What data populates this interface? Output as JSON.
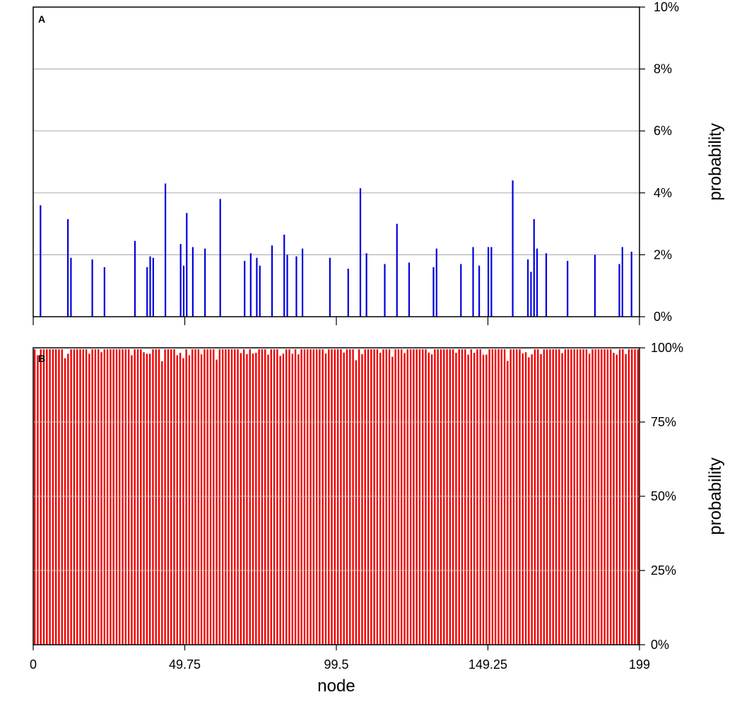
{
  "chart_data": [
    {
      "panel": "A",
      "type": "bar",
      "color": "#0000dd",
      "xlabel": "",
      "ylabel": "probability",
      "xlim": [
        0,
        199
      ],
      "ylim": [
        0,
        10
      ],
      "yticks": [
        "0%",
        "2%",
        "4%",
        "6%",
        "8%",
        "10%"
      ],
      "ytick_values": [
        0,
        2,
        4,
        6,
        8,
        10
      ],
      "grid": true,
      "x": [
        1,
        10,
        11,
        18,
        22,
        32,
        36,
        37,
        38,
        42,
        47,
        48,
        49,
        51,
        55,
        60,
        68,
        70,
        72,
        73,
        77,
        81,
        82,
        85,
        87,
        96,
        102,
        106,
        108,
        114,
        118,
        122,
        130,
        131,
        139,
        143,
        145,
        148,
        149,
        156,
        161,
        162,
        163,
        164,
        167,
        174,
        183,
        191,
        192,
        195
      ],
      "values": [
        3.6,
        3.15,
        1.9,
        1.85,
        1.6,
        2.45,
        1.6,
        1.95,
        1.9,
        4.3,
        2.35,
        1.65,
        3.35,
        2.25,
        2.2,
        3.8,
        1.8,
        2.05,
        1.9,
        1.65,
        2.3,
        2.65,
        2.0,
        1.95,
        2.2,
        1.9,
        1.55,
        4.15,
        2.05,
        1.7,
        3.0,
        1.75,
        1.6,
        2.2,
        1.7,
        2.25,
        1.65,
        2.25,
        2.25,
        4.4,
        1.85,
        1.45,
        3.15,
        2.2,
        2.05,
        1.8,
        2.0,
        1.7,
        2.25,
        2.1
      ]
    },
    {
      "panel": "B",
      "type": "bar",
      "color": "#ee0000",
      "xlabel": "node",
      "ylabel": "probability",
      "xlim": [
        0,
        199
      ],
      "ylim": [
        0,
        100
      ],
      "yticks": [
        "0%",
        "25%",
        "50%",
        "75%",
        "100%"
      ],
      "ytick_values": [
        0,
        25,
        50,
        75,
        100
      ],
      "xticks": [
        "0",
        "49.75",
        "99.5",
        "149.25",
        "199"
      ],
      "xtick_values": [
        0,
        49.75,
        99.5,
        149.25,
        199
      ],
      "grid": true,
      "bar_count": 200,
      "default_value": 99.5,
      "dips": {
        "1": 97.5,
        "10": 96.5,
        "11": 98.0,
        "18": 98.0,
        "22": 98.5,
        "32": 97.5,
        "36": 98.5,
        "37": 98.0,
        "38": 98.0,
        "42": 95.5,
        "47": 97.5,
        "48": 98.3,
        "49": 96.5,
        "51": 97.5,
        "55": 97.8,
        "60": 96.0,
        "68": 98.2,
        "70": 97.9,
        "72": 98.1,
        "73": 98.3,
        "77": 97.7,
        "81": 97.3,
        "82": 98.0,
        "85": 98.0,
        "87": 97.8,
        "96": 98.1,
        "102": 98.4,
        "106": 95.8,
        "108": 97.9,
        "114": 98.3,
        "118": 97.0,
        "122": 98.2,
        "130": 98.4,
        "131": 97.8,
        "139": 98.3,
        "143": 97.7,
        "145": 98.3,
        "148": 97.7,
        "149": 97.7,
        "156": 95.6,
        "161": 98.1,
        "162": 98.5,
        "163": 96.8,
        "164": 97.8,
        "167": 97.9,
        "174": 98.2,
        "183": 98.0,
        "191": 98.3,
        "192": 97.7,
        "195": 97.9
      }
    }
  ]
}
